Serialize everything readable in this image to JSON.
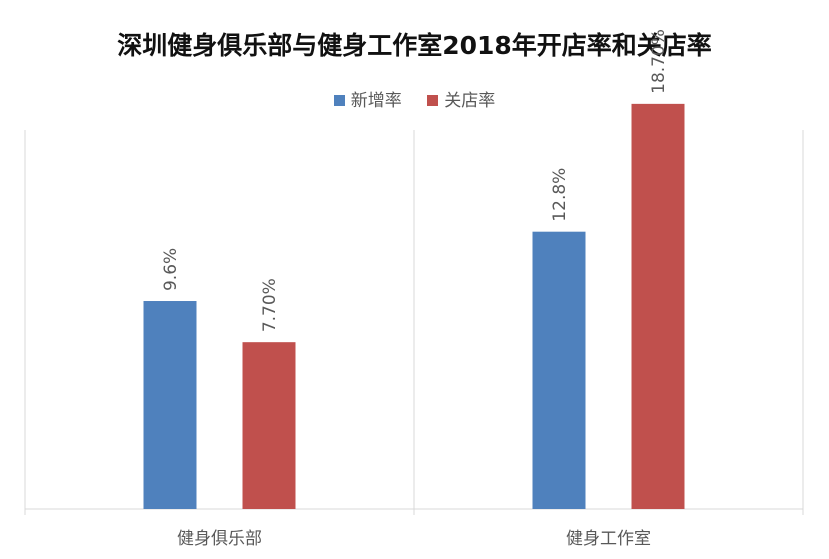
{
  "chart_data": {
    "type": "bar",
    "title": "深圳健身俱乐部与健身工作室2018年开店率和关店率",
    "categories": [
      "健身俱乐部",
      "健身工作室"
    ],
    "series": [
      {
        "name": "新增率",
        "color": "#4f81bd",
        "values": [
          9.6,
          12.8
        ],
        "labels": [
          "9.6%",
          "12.8%"
        ]
      },
      {
        "name": "关店率",
        "color": "#c0504d",
        "values": [
          7.7,
          18.7
        ],
        "labels": [
          "7.70%",
          "18.70%"
        ]
      }
    ],
    "xlabel": "",
    "ylabel": "",
    "ylim": [
      0,
      20
    ],
    "grid": false,
    "legend_position": "top"
  }
}
